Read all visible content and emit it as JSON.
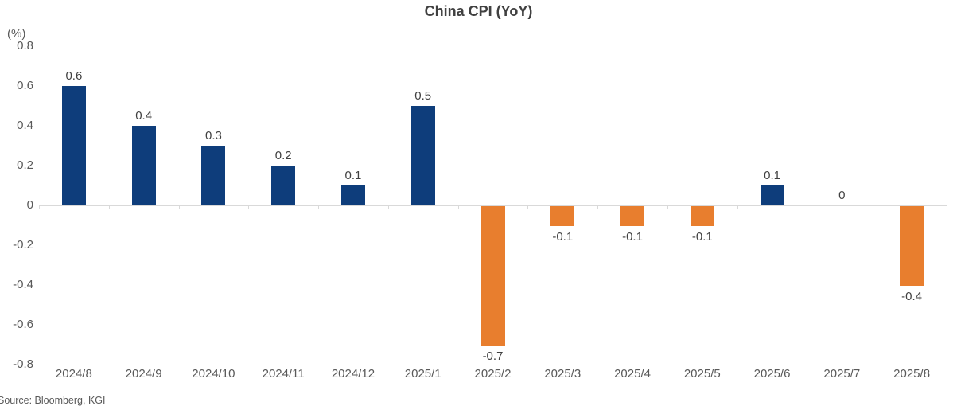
{
  "title": "China CPI (YoY)",
  "unit_label": "(%)",
  "source": "Source: Bloomberg, KGI",
  "colors": {
    "positive_bar": "#0e3d7b",
    "negative_bar": "#e87e2e",
    "axis_line": "#d9d9d9",
    "title_text": "#404040",
    "tick_text": "#595959",
    "data_label_text": "#404040"
  },
  "chart_data": {
    "type": "bar",
    "title": "China CPI (YoY)",
    "ylabel": "(%)",
    "xlabel": "",
    "ylim": [
      -0.8,
      0.8
    ],
    "yticks": [
      "0.8",
      "0.6",
      "0.4",
      "0.2",
      "0",
      "-0.2",
      "-0.4",
      "-0.6",
      "-0.8"
    ],
    "ytick_values": [
      0.8,
      0.6,
      0.4,
      0.2,
      0,
      -0.2,
      -0.4,
      -0.6,
      -0.8
    ],
    "categories": [
      "2024/8",
      "2024/9",
      "2024/10",
      "2024/11",
      "2024/12",
      "2025/1",
      "2025/2",
      "2025/3",
      "2025/4",
      "2025/5",
      "2025/6",
      "2025/7",
      "2025/8"
    ],
    "values": [
      0.6,
      0.4,
      0.3,
      0.2,
      0.1,
      0.5,
      -0.7,
      -0.1,
      -0.1,
      -0.1,
      0.1,
      0,
      -0.4
    ],
    "data_labels": [
      "0.6",
      "0.4",
      "0.3",
      "0.2",
      "0.1",
      "0.5",
      "-0.7",
      "-0.1",
      "-0.1",
      "-0.1",
      "0.1",
      "0",
      "-0.4"
    ],
    "grid": false,
    "legend_position": "none",
    "series_name": "China CPI YoY",
    "positive_color": "#0e3d7b",
    "negative_color": "#e87e2e"
  }
}
